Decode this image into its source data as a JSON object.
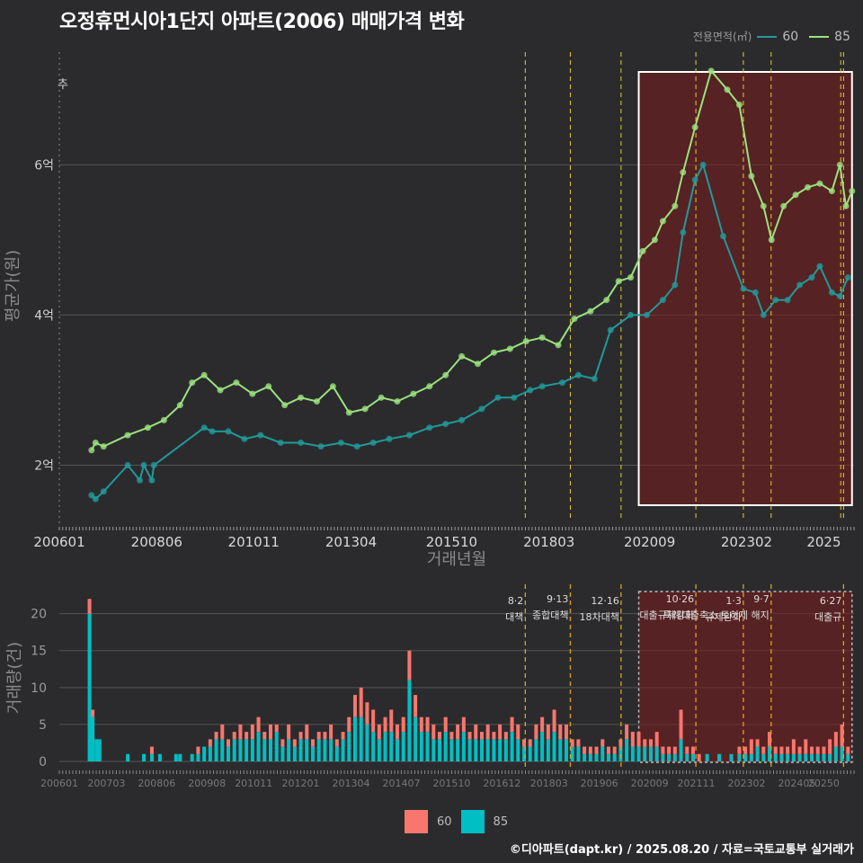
{
  "title": "오정휴먼시아1단지 아파트(2006) 매매가격 변화",
  "legend": {
    "title": "전용면적(㎡)",
    "items": [
      {
        "label": "60",
        "color": "#22999a",
        "bar_color": "#f8766d"
      },
      {
        "label": "85",
        "color": "#9be27f",
        "bar_color": "#00bfc4"
      }
    ]
  },
  "footer": "©디아파트(dapt.kr) / 2025.08.20 / 자료=국토교통부 실거래가",
  "price_chart": {
    "ylabel": "평균가(원)",
    "xlabel": "거래년월",
    "yticks": [
      {
        "v": 2,
        "label": "2억"
      },
      {
        "v": 4,
        "label": "4억"
      },
      {
        "v": 6,
        "label": "6억"
      }
    ],
    "xticks": [
      {
        "t": 2006.0,
        "label": "200601"
      },
      {
        "t": 2008.42,
        "label": "200806"
      },
      {
        "t": 2010.83,
        "label": "201011"
      },
      {
        "t": 2013.25,
        "label": "201304"
      },
      {
        "t": 2015.75,
        "label": "201510"
      },
      {
        "t": 2018.17,
        "label": "201803"
      },
      {
        "t": 2020.67,
        "label": "202009"
      },
      {
        "t": 2023.08,
        "label": "202302"
      },
      {
        "t": 2025.0,
        "label": "2025"
      }
    ],
    "corner_label": "추"
  },
  "volume_chart": {
    "ylabel": "거래량(건)",
    "yticks": [
      0,
      5,
      10,
      15,
      20
    ],
    "xticks": [
      {
        "t": 2006.0,
        "label": "200601"
      },
      {
        "t": 2007.17,
        "label": "200703"
      },
      {
        "t": 2008.42,
        "label": "200806"
      },
      {
        "t": 2009.67,
        "label": "200908"
      },
      {
        "t": 2010.83,
        "label": "201011"
      },
      {
        "t": 2012.0,
        "label": "201201"
      },
      {
        "t": 2013.25,
        "label": "201304"
      },
      {
        "t": 2014.5,
        "label": "201407"
      },
      {
        "t": 2015.75,
        "label": "201510"
      },
      {
        "t": 2017.0,
        "label": "201612"
      },
      {
        "t": 2018.17,
        "label": "201803"
      },
      {
        "t": 2019.42,
        "label": "201906"
      },
      {
        "t": 2020.67,
        "label": "202009"
      },
      {
        "t": 2021.83,
        "label": "202111"
      },
      {
        "t": 2023.08,
        "label": "202302"
      },
      {
        "t": 2024.33,
        "label": "202405"
      },
      {
        "t": 2025.0,
        "label": "20250"
      }
    ],
    "events": [
      {
        "t": 2017.58,
        "date": "8·2",
        "name": "대책"
      },
      {
        "t": 2018.7,
        "date": "9·13",
        "name": "종합대책"
      },
      {
        "t": 2019.96,
        "date": "12·16",
        "name": "18차대책"
      },
      {
        "t": 2021.82,
        "date": "10·26",
        "name": "대출규제강화"
      },
      {
        "t": 2023.0,
        "date": "1·3",
        "name": "규제완화"
      },
      {
        "t": 2023.69,
        "date": "9·7",
        "name": "특례대출축소 토허제 해지"
      },
      {
        "t": 2025.49,
        "date": "6·27",
        "name": "대출규"
      }
    ]
  },
  "chart_data": [
    {
      "type": "line",
      "title": "오정휴먼시아1단지 아파트(2006) 매매가격 변화",
      "xlabel": "거래년월",
      "ylabel": "평균가(원)",
      "ylim": [
        1.3,
        7.5
      ],
      "unit": "억",
      "highlight_range": [
        2020.4,
        2025.7
      ],
      "vlines": [
        2017.58,
        2018.7,
        2019.96,
        2021.82,
        2023.0,
        2023.69,
        2025.42,
        2025.49
      ],
      "series": [
        {
          "name": "60",
          "points": [
            [
              2006.8,
              1.6
            ],
            [
              2006.9,
              1.55
            ],
            [
              2007.1,
              1.65
            ],
            [
              2007.7,
              2.0
            ],
            [
              2008.0,
              1.8
            ],
            [
              2008.1,
              2.0
            ],
            [
              2008.3,
              1.8
            ],
            [
              2008.35,
              2.0
            ],
            [
              2009.6,
              2.5
            ],
            [
              2009.8,
              2.45
            ],
            [
              2010.2,
              2.45
            ],
            [
              2010.6,
              2.35
            ],
            [
              2011.0,
              2.4
            ],
            [
              2011.5,
              2.3
            ],
            [
              2012.0,
              2.3
            ],
            [
              2012.5,
              2.25
            ],
            [
              2013.0,
              2.3
            ],
            [
              2013.4,
              2.25
            ],
            [
              2013.8,
              2.3
            ],
            [
              2014.2,
              2.35
            ],
            [
              2014.7,
              2.4
            ],
            [
              2015.2,
              2.5
            ],
            [
              2015.6,
              2.55
            ],
            [
              2016.0,
              2.6
            ],
            [
              2016.5,
              2.75
            ],
            [
              2016.9,
              2.9
            ],
            [
              2017.3,
              2.9
            ],
            [
              2017.7,
              3.0
            ],
            [
              2018.0,
              3.05
            ],
            [
              2018.5,
              3.1
            ],
            [
              2018.9,
              3.2
            ],
            [
              2019.3,
              3.15
            ],
            [
              2019.7,
              3.8
            ],
            [
              2020.2,
              4.0
            ],
            [
              2020.6,
              4.0
            ],
            [
              2021.0,
              4.2
            ],
            [
              2021.3,
              4.4
            ],
            [
              2021.5,
              5.1
            ],
            [
              2021.8,
              5.8
            ],
            [
              2022.0,
              6.0
            ],
            [
              2022.5,
              5.05
            ],
            [
              2023.0,
              4.35
            ],
            [
              2023.3,
              4.3
            ],
            [
              2023.5,
              4.0
            ],
            [
              2023.8,
              4.2
            ],
            [
              2024.1,
              4.2
            ],
            [
              2024.4,
              4.4
            ],
            [
              2024.7,
              4.5
            ],
            [
              2024.9,
              4.65
            ],
            [
              2025.2,
              4.3
            ],
            [
              2025.4,
              4.25
            ],
            [
              2025.6,
              4.5
            ]
          ]
        },
        {
          "name": "85",
          "points": [
            [
              2006.8,
              2.2
            ],
            [
              2006.9,
              2.3
            ],
            [
              2007.1,
              2.25
            ],
            [
              2007.7,
              2.4
            ],
            [
              2008.2,
              2.5
            ],
            [
              2008.6,
              2.6
            ],
            [
              2009.0,
              2.8
            ],
            [
              2009.3,
              3.1
            ],
            [
              2009.6,
              3.2
            ],
            [
              2010.0,
              3.0
            ],
            [
              2010.4,
              3.1
            ],
            [
              2010.8,
              2.95
            ],
            [
              2011.2,
              3.05
            ],
            [
              2011.6,
              2.8
            ],
            [
              2012.0,
              2.9
            ],
            [
              2012.4,
              2.85
            ],
            [
              2012.8,
              3.05
            ],
            [
              2013.2,
              2.7
            ],
            [
              2013.6,
              2.75
            ],
            [
              2014.0,
              2.9
            ],
            [
              2014.4,
              2.85
            ],
            [
              2014.8,
              2.95
            ],
            [
              2015.2,
              3.05
            ],
            [
              2015.6,
              3.2
            ],
            [
              2016.0,
              3.45
            ],
            [
              2016.4,
              3.35
            ],
            [
              2016.8,
              3.5
            ],
            [
              2017.2,
              3.55
            ],
            [
              2017.6,
              3.65
            ],
            [
              2018.0,
              3.7
            ],
            [
              2018.4,
              3.6
            ],
            [
              2018.8,
              3.95
            ],
            [
              2019.2,
              4.05
            ],
            [
              2019.6,
              4.2
            ],
            [
              2019.9,
              4.45
            ],
            [
              2020.2,
              4.5
            ],
            [
              2020.5,
              4.85
            ],
            [
              2020.8,
              5.0
            ],
            [
              2021.0,
              5.25
            ],
            [
              2021.3,
              5.45
            ],
            [
              2021.5,
              5.9
            ],
            [
              2021.8,
              6.5
            ],
            [
              2022.2,
              7.25
            ],
            [
              2022.6,
              7.0
            ],
            [
              2022.9,
              6.8
            ],
            [
              2023.2,
              5.85
            ],
            [
              2023.5,
              5.45
            ],
            [
              2023.7,
              5.0
            ],
            [
              2024.0,
              5.45
            ],
            [
              2024.3,
              5.6
            ],
            [
              2024.6,
              5.7
            ],
            [
              2024.9,
              5.75
            ],
            [
              2025.2,
              5.65
            ],
            [
              2025.4,
              6.0
            ],
            [
              2025.55,
              5.45
            ],
            [
              2025.7,
              5.65
            ]
          ]
        }
      ]
    },
    {
      "type": "bar",
      "stacked": true,
      "xlabel": "거래년월",
      "ylabel": "거래량(건)",
      "ylim": [
        0,
        23
      ],
      "series_names": [
        "60",
        "85"
      ],
      "bars": [
        [
          2006.75,
          2,
          20
        ],
        [
          2006.83,
          1,
          6
        ],
        [
          2006.92,
          0,
          3
        ],
        [
          2007.0,
          0,
          3
        ],
        [
          2007.7,
          0,
          1
        ],
        [
          2008.1,
          0,
          1
        ],
        [
          2008.3,
          1,
          1
        ],
        [
          2008.5,
          0,
          1
        ],
        [
          2008.9,
          0,
          1
        ],
        [
          2009.0,
          0,
          1
        ],
        [
          2009.3,
          0,
          1
        ],
        [
          2009.45,
          1,
          1
        ],
        [
          2009.6,
          0,
          2
        ],
        [
          2009.75,
          1,
          2
        ],
        [
          2009.9,
          1,
          3
        ],
        [
          2010.05,
          2,
          3
        ],
        [
          2010.2,
          1,
          2
        ],
        [
          2010.35,
          1,
          3
        ],
        [
          2010.5,
          2,
          3
        ],
        [
          2010.65,
          1,
          3
        ],
        [
          2010.8,
          2,
          3
        ],
        [
          2010.95,
          2,
          4
        ],
        [
          2011.1,
          1,
          3
        ],
        [
          2011.25,
          2,
          3
        ],
        [
          2011.4,
          1,
          4
        ],
        [
          2011.55,
          1,
          2
        ],
        [
          2011.7,
          2,
          3
        ],
        [
          2011.85,
          1,
          2
        ],
        [
          2012.0,
          1,
          3
        ],
        [
          2012.15,
          2,
          3
        ],
        [
          2012.3,
          1,
          2
        ],
        [
          2012.45,
          1,
          3
        ],
        [
          2012.6,
          1,
          3
        ],
        [
          2012.75,
          2,
          3
        ],
        [
          2012.9,
          1,
          2
        ],
        [
          2013.05,
          1,
          3
        ],
        [
          2013.2,
          2,
          4
        ],
        [
          2013.35,
          3,
          6
        ],
        [
          2013.5,
          4,
          6
        ],
        [
          2013.65,
          3,
          5
        ],
        [
          2013.8,
          3,
          4
        ],
        [
          2013.95,
          2,
          3
        ],
        [
          2014.1,
          2,
          4
        ],
        [
          2014.25,
          3,
          4
        ],
        [
          2014.4,
          2,
          3
        ],
        [
          2014.55,
          2,
          4
        ],
        [
          2014.7,
          4,
          11
        ],
        [
          2014.85,
          3,
          6
        ],
        [
          2015.0,
          2,
          4
        ],
        [
          2015.15,
          2,
          4
        ],
        [
          2015.3,
          2,
          3
        ],
        [
          2015.45,
          1,
          3
        ],
        [
          2015.6,
          2,
          4
        ],
        [
          2015.75,
          1,
          3
        ],
        [
          2015.9,
          2,
          3
        ],
        [
          2016.05,
          2,
          4
        ],
        [
          2016.2,
          1,
          3
        ],
        [
          2016.35,
          2,
          3
        ],
        [
          2016.5,
          1,
          3
        ],
        [
          2016.65,
          2,
          3
        ],
        [
          2016.8,
          1,
          3
        ],
        [
          2016.95,
          2,
          3
        ],
        [
          2017.1,
          1,
          3
        ],
        [
          2017.25,
          2,
          4
        ],
        [
          2017.4,
          2,
          3
        ],
        [
          2017.55,
          1,
          2
        ],
        [
          2017.7,
          1,
          2
        ],
        [
          2017.85,
          2,
          3
        ],
        [
          2018.0,
          2,
          4
        ],
        [
          2018.15,
          2,
          3
        ],
        [
          2018.3,
          3,
          4
        ],
        [
          2018.45,
          2,
          3
        ],
        [
          2018.6,
          2,
          3
        ],
        [
          2018.75,
          1,
          2
        ],
        [
          2018.9,
          1,
          2
        ],
        [
          2019.05,
          1,
          1
        ],
        [
          2019.2,
          1,
          1
        ],
        [
          2019.35,
          1,
          1
        ],
        [
          2019.5,
          1,
          2
        ],
        [
          2019.65,
          1,
          1
        ],
        [
          2019.8,
          1,
          1
        ],
        [
          2019.95,
          1,
          2
        ],
        [
          2020.1,
          2,
          3
        ],
        [
          2020.25,
          2,
          2
        ],
        [
          2020.4,
          2,
          2
        ],
        [
          2020.55,
          1,
          2
        ],
        [
          2020.7,
          1,
          2
        ],
        [
          2020.85,
          2,
          2
        ],
        [
          2021.0,
          1,
          1
        ],
        [
          2021.15,
          1,
          1
        ],
        [
          2021.3,
          1,
          1
        ],
        [
          2021.45,
          4,
          3
        ],
        [
          2021.6,
          1,
          1
        ],
        [
          2021.75,
          1,
          1
        ],
        [
          2021.9,
          1,
          0
        ],
        [
          2022.1,
          0,
          1
        ],
        [
          2022.4,
          0,
          1
        ],
        [
          2022.7,
          0,
          1
        ],
        [
          2022.9,
          1,
          1
        ],
        [
          2023.05,
          1,
          1
        ],
        [
          2023.2,
          2,
          1
        ],
        [
          2023.35,
          1,
          2
        ],
        [
          2023.5,
          1,
          1
        ],
        [
          2023.65,
          2,
          2
        ],
        [
          2023.8,
          1,
          1
        ],
        [
          2023.95,
          1,
          1
        ],
        [
          2024.1,
          1,
          1
        ],
        [
          2024.25,
          2,
          1
        ],
        [
          2024.4,
          1,
          1
        ],
        [
          2024.55,
          2,
          1
        ],
        [
          2024.7,
          1,
          1
        ],
        [
          2024.85,
          1,
          1
        ],
        [
          2025.0,
          1,
          1
        ],
        [
          2025.15,
          2,
          1
        ],
        [
          2025.3,
          2,
          2
        ],
        [
          2025.45,
          3,
          2
        ],
        [
          2025.6,
          1,
          1
        ]
      ]
    }
  ]
}
